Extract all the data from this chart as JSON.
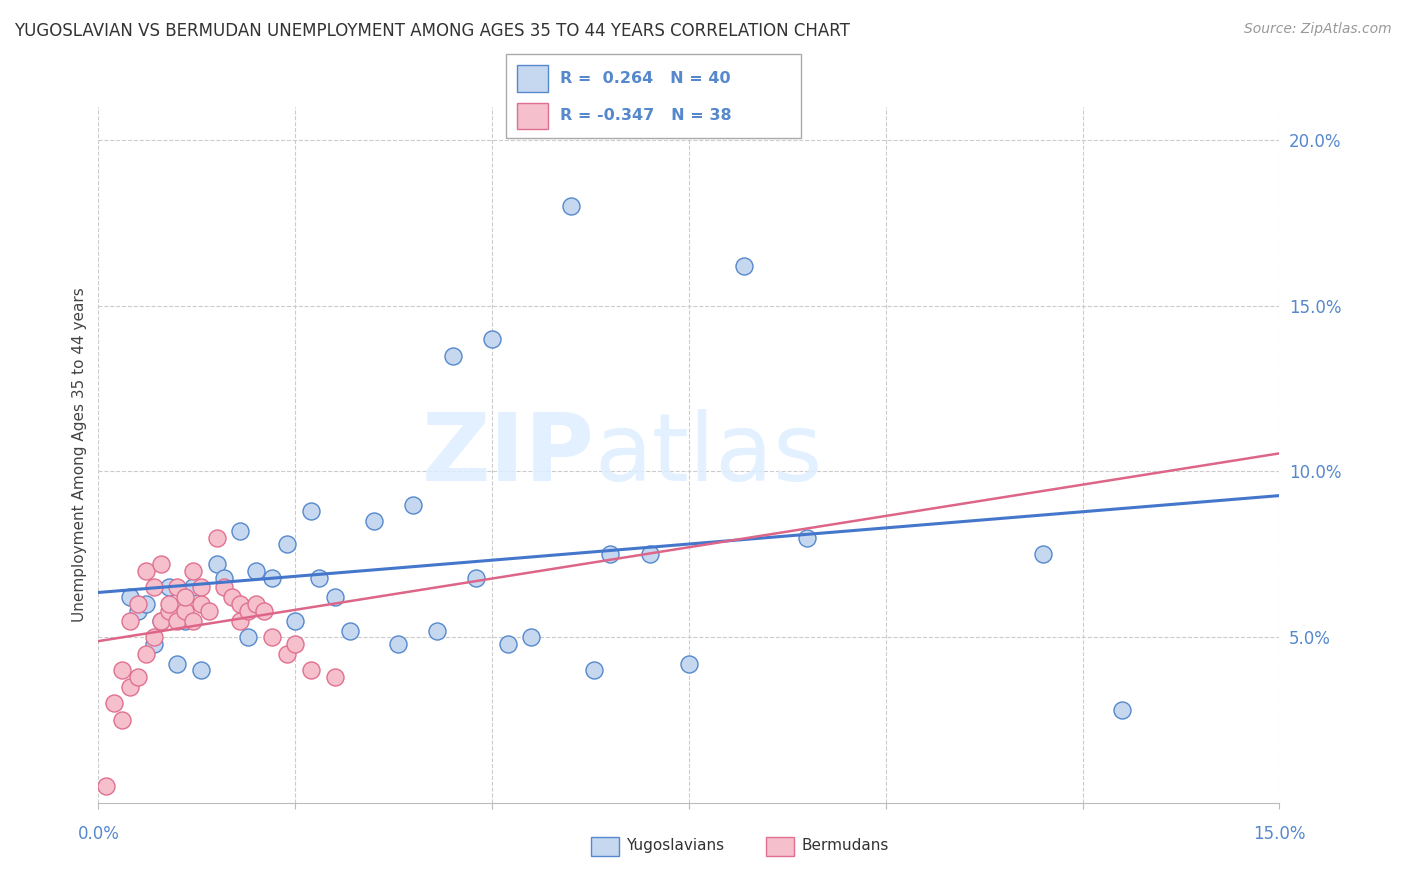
{
  "title": "YUGOSLAVIAN VS BERMUDAN UNEMPLOYMENT AMONG AGES 35 TO 44 YEARS CORRELATION CHART",
  "source": "Source: ZipAtlas.com",
  "ylabel": "Unemployment Among Ages 35 to 44 years",
  "r_yugo": 0.264,
  "n_yugo": 40,
  "r_bermu": -0.347,
  "n_bermu": 38,
  "watermark_zip": "ZIP",
  "watermark_atlas": "atlas",
  "blue_fill": "#c5d8f0",
  "blue_edge": "#5588cc",
  "pink_fill": "#f5bfcc",
  "pink_edge": "#e07090",
  "blue_line": "#4477cc",
  "pink_line": "#dd6688",
  "yugo_scatter_x": [
    0.004,
    0.005,
    0.006,
    0.007,
    0.008,
    0.009,
    0.01,
    0.011,
    0.012,
    0.013,
    0.015,
    0.016,
    0.018,
    0.019,
    0.02,
    0.022,
    0.024,
    0.025,
    0.027,
    0.028,
    0.03,
    0.032,
    0.035,
    0.038,
    0.04,
    0.043,
    0.045,
    0.048,
    0.05,
    0.052,
    0.055,
    0.06,
    0.063,
    0.065,
    0.07,
    0.075,
    0.082,
    0.09,
    0.12,
    0.13
  ],
  "yugo_scatter_y": [
    0.062,
    0.058,
    0.06,
    0.048,
    0.055,
    0.065,
    0.042,
    0.055,
    0.065,
    0.04,
    0.072,
    0.068,
    0.082,
    0.05,
    0.07,
    0.068,
    0.078,
    0.055,
    0.088,
    0.068,
    0.062,
    0.052,
    0.085,
    0.048,
    0.09,
    0.052,
    0.135,
    0.068,
    0.14,
    0.048,
    0.05,
    0.18,
    0.04,
    0.075,
    0.075,
    0.042,
    0.162,
    0.08,
    0.075,
    0.028
  ],
  "bermu_scatter_x": [
    0.001,
    0.002,
    0.003,
    0.003,
    0.004,
    0.004,
    0.005,
    0.005,
    0.006,
    0.006,
    0.007,
    0.007,
    0.008,
    0.008,
    0.009,
    0.009,
    0.01,
    0.01,
    0.011,
    0.011,
    0.012,
    0.012,
    0.013,
    0.013,
    0.014,
    0.015,
    0.016,
    0.017,
    0.018,
    0.018,
    0.019,
    0.02,
    0.021,
    0.022,
    0.024,
    0.025,
    0.027,
    0.03
  ],
  "bermu_scatter_y": [
    0.005,
    0.03,
    0.025,
    0.04,
    0.035,
    0.055,
    0.038,
    0.06,
    0.045,
    0.07,
    0.05,
    0.065,
    0.055,
    0.072,
    0.058,
    0.06,
    0.055,
    0.065,
    0.058,
    0.062,
    0.055,
    0.07,
    0.06,
    0.065,
    0.058,
    0.08,
    0.065,
    0.062,
    0.06,
    0.055,
    0.058,
    0.06,
    0.058,
    0.05,
    0.045,
    0.048,
    0.04,
    0.038
  ],
  "xlim": [
    0.0,
    0.15
  ],
  "ylim": [
    0.0,
    0.21
  ],
  "yticks": [
    0.05,
    0.1,
    0.15,
    0.2
  ],
  "ytick_labels": [
    "5.0%",
    "10.0%",
    "15.0%",
    "20.0%"
  ],
  "grid_color": "#cccccc",
  "background": "#ffffff",
  "tick_label_color": "#5588cc",
  "title_color": "#333333",
  "source_color": "#999999",
  "ylabel_color": "#444444"
}
